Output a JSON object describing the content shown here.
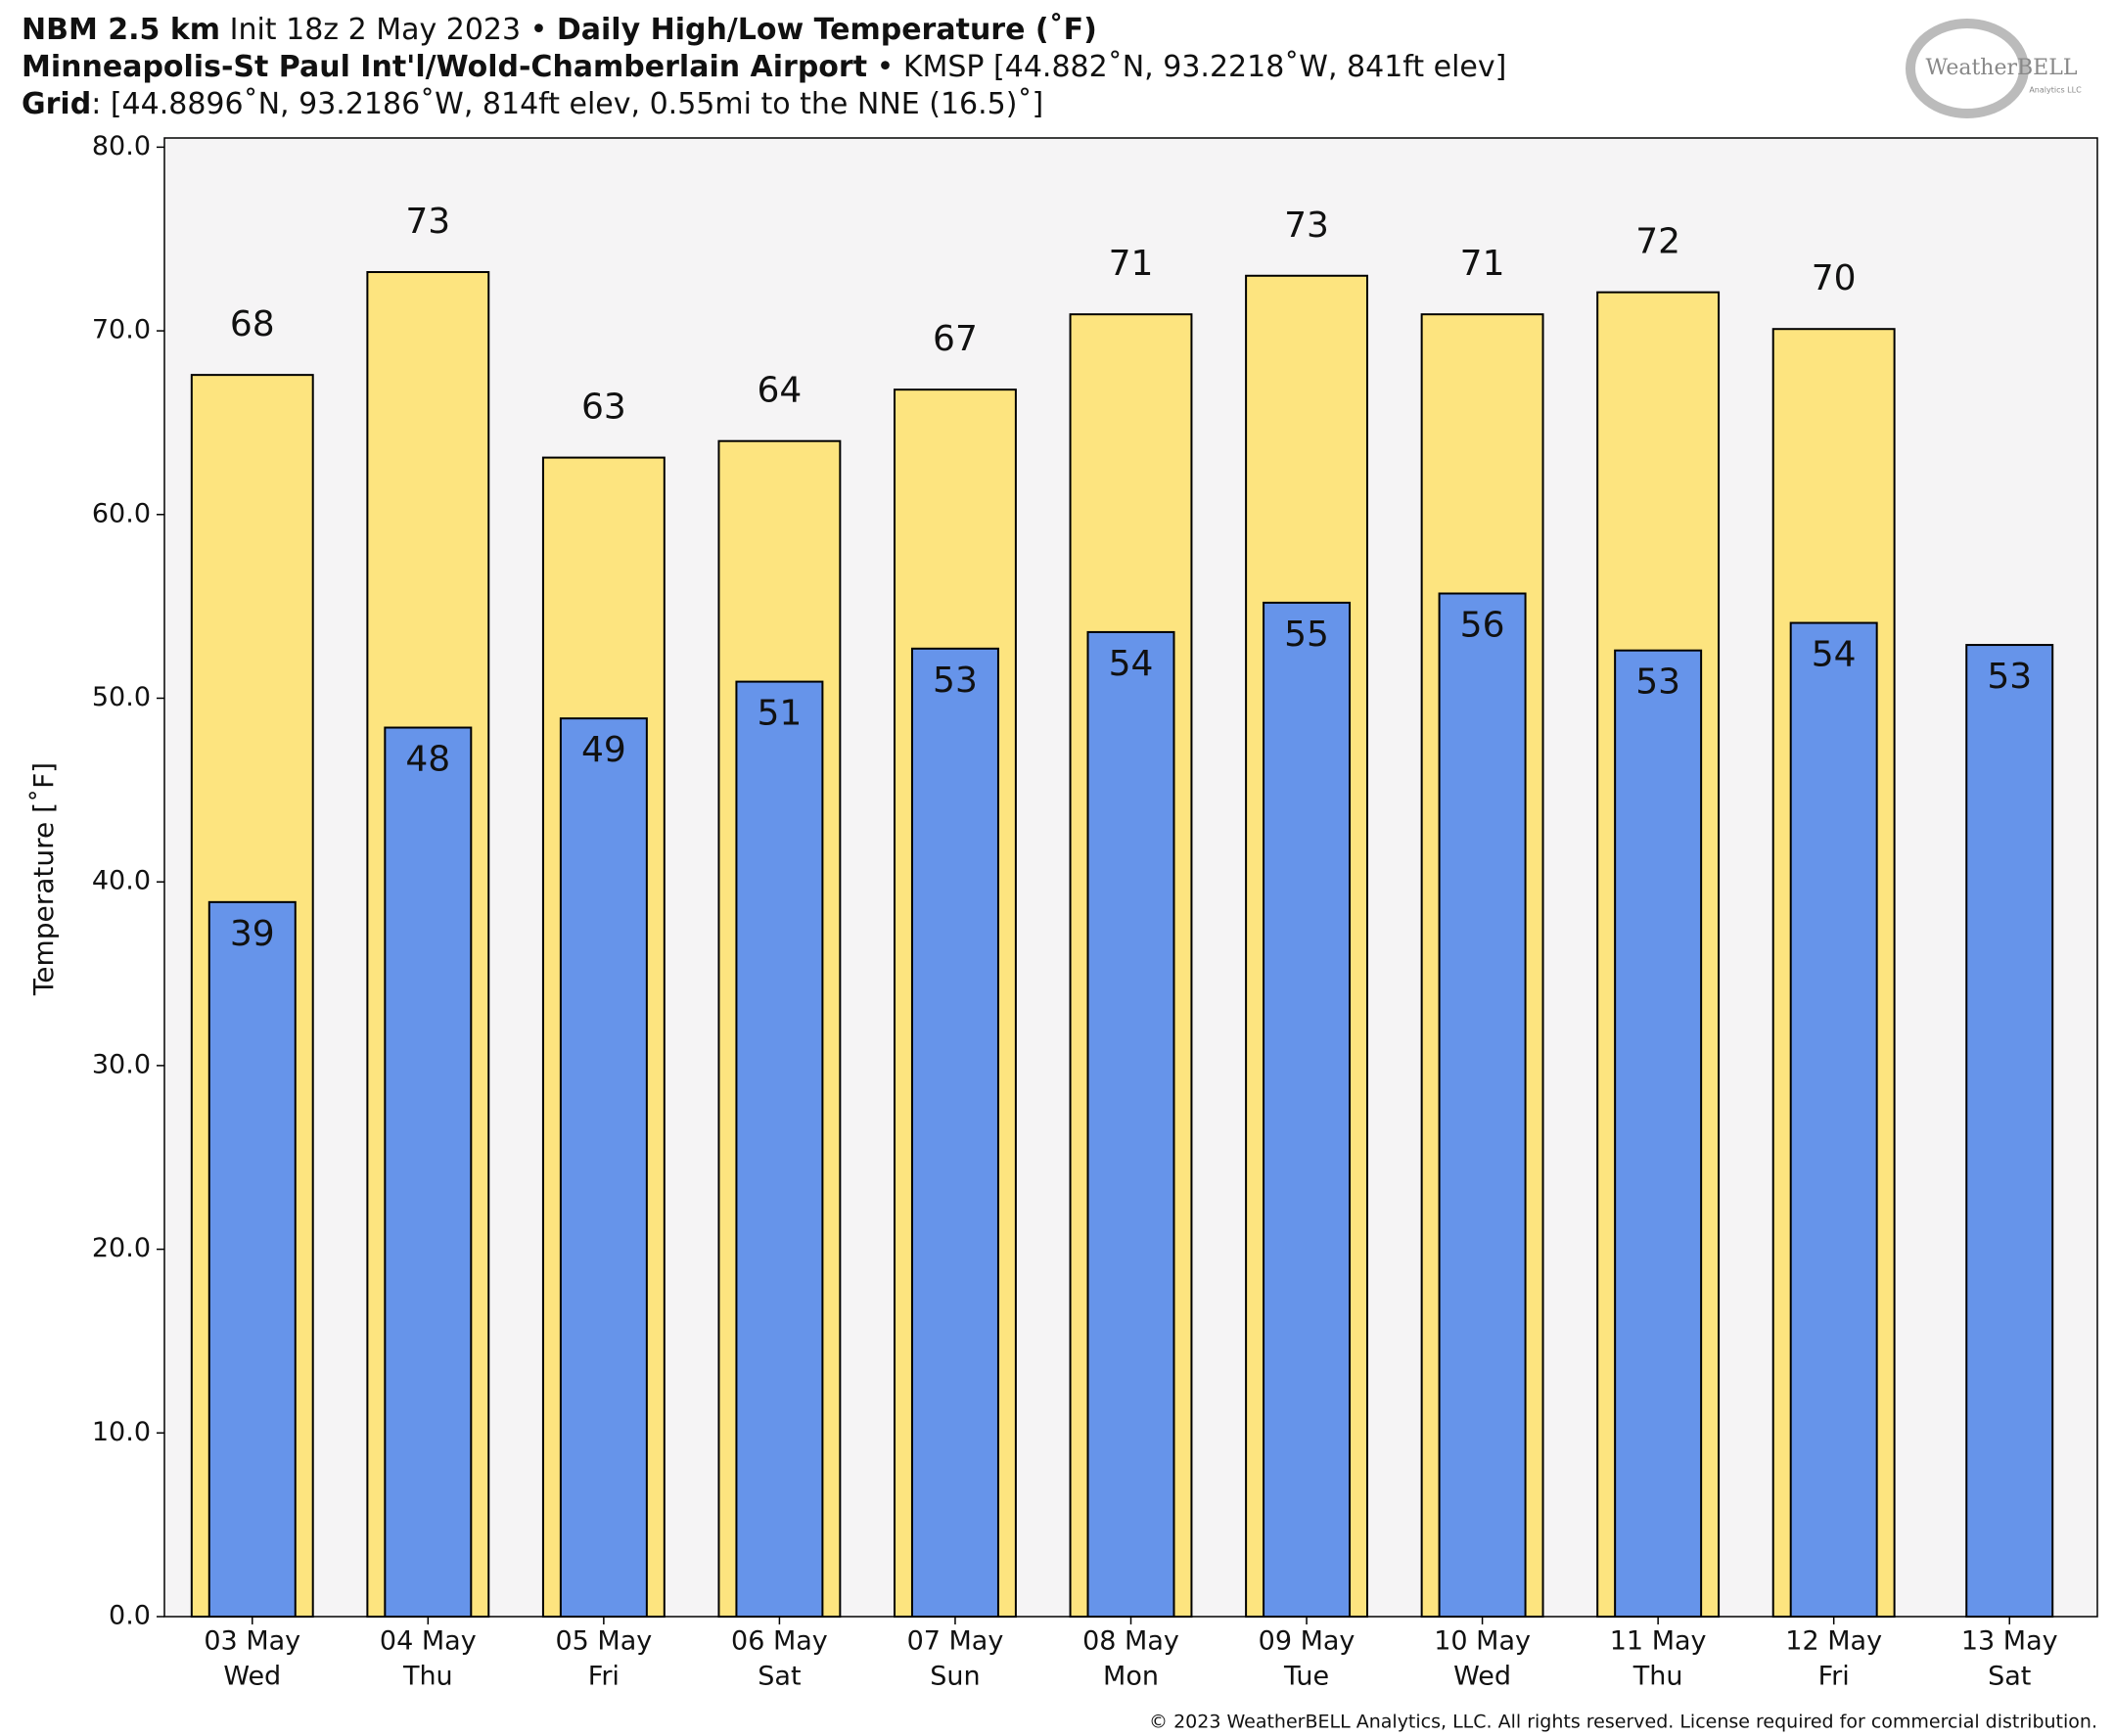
{
  "chart_data": {
    "type": "bar",
    "title_lines": [
      [
        {
          "text": "NBM 2.5 km",
          "bold": true
        },
        {
          "text": " Init 18z 2 May 2023 • ",
          "bold": false
        },
        {
          "text": "Daily High/Low Temperature (˚F)",
          "bold": true
        }
      ],
      [
        {
          "text": "Minneapolis-St Paul Int'l/Wold-Chamberlain Airport",
          "bold": true
        },
        {
          "text": " • KMSP [44.882˚N, 93.2218˚W, 841ft elev]",
          "bold": false
        }
      ],
      [
        {
          "text": "Grid",
          "bold": true
        },
        {
          "text": ": [44.8896˚N, 93.2186˚W, 814ft elev, 0.55mi to the NNE (16.5)˚]",
          "bold": false
        }
      ]
    ],
    "y_label": "Temperature [˚F]",
    "categories": [
      "03 May",
      "04 May",
      "05 May",
      "06 May",
      "07 May",
      "08 May",
      "09 May",
      "10 May",
      "11 May",
      "12 May",
      "13 May"
    ],
    "weekdays": [
      "Wed",
      "Thu",
      "Fri",
      "Sat",
      "Sun",
      "Mon",
      "Tue",
      "Wed",
      "Thu",
      "Fri",
      "Sat"
    ],
    "series": [
      {
        "name": "High",
        "color": "#fde47f",
        "width": 0.69,
        "values": [
          67.6,
          73.2,
          63.1,
          64.0,
          66.8,
          70.9,
          73.0,
          70.9,
          72.1,
          70.1,
          null
        ],
        "value_labels": [
          "68",
          "73",
          "63",
          "64",
          "67",
          "71",
          "73",
          "71",
          "72",
          "70",
          null
        ],
        "label_position": "above"
      },
      {
        "name": "Low",
        "color": "#6694ea",
        "width": 0.49,
        "values": [
          38.9,
          48.4,
          48.9,
          50.9,
          52.7,
          53.6,
          55.2,
          55.7,
          52.6,
          54.1,
          52.9
        ],
        "value_labels": [
          "39",
          "48",
          "49",
          "51",
          "53",
          "54",
          "55",
          "56",
          "53",
          "54",
          "53"
        ],
        "label_position": "inside"
      }
    ],
    "ylim": [
      0,
      80.5
    ],
    "yticks": [
      {
        "value": 0,
        "label": "0.0"
      },
      {
        "value": 10,
        "label": "10.0"
      },
      {
        "value": 20,
        "label": "20.0"
      },
      {
        "value": 30,
        "label": "30.0"
      },
      {
        "value": 40,
        "label": "40.0"
      },
      {
        "value": 50,
        "label": "50.0"
      },
      {
        "value": 60,
        "label": "60.0"
      },
      {
        "value": 70,
        "label": "70.0"
      },
      {
        "value": 80,
        "label": "80.0"
      }
    ],
    "logo": {
      "name": "WeatherBELL",
      "sub": "Analytics LLC"
    },
    "copyright": "© 2023 WeatherBELL Analytics, LLC. All rights reserved. License required for commercial distribution."
  }
}
